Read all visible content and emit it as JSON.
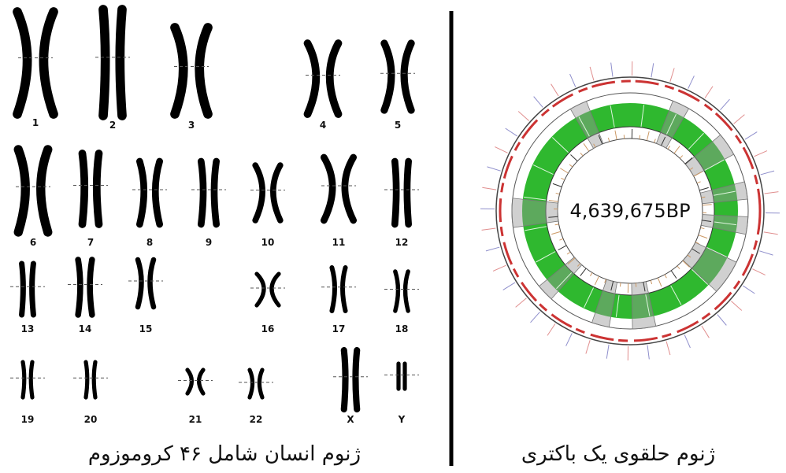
{
  "karyotype": {
    "labels": [
      "1",
      "2",
      "3",
      "4",
      "5",
      "6",
      "7",
      "8",
      "9",
      "10",
      "11",
      "12",
      "13",
      "14",
      "15",
      "16",
      "17",
      "18",
      "19",
      "20",
      "21",
      "22",
      "X",
      "Y"
    ],
    "caption": "ژنوم انسان شامل ۴۶ کروموزوم"
  },
  "circular_genome": {
    "size_label": "4,639,675BP",
    "caption": "ژنوم حلقوی یک باکتری"
  }
}
